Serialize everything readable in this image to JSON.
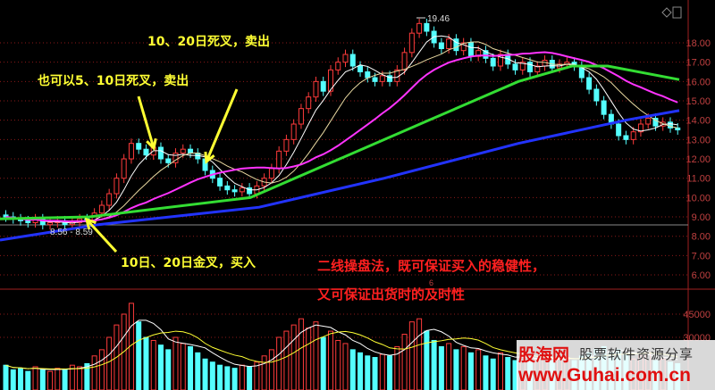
{
  "chart_data": {
    "type": "candlestick",
    "ylim": [
      5.5,
      19.5
    ],
    "yticks": [
      "18.00",
      "17.00",
      "16.00",
      "15.00",
      "14.00",
      "13.00",
      "12.00",
      "11.00",
      "10.00",
      "9.00",
      "8.00",
      "7.00",
      "6.00"
    ],
    "volume_ticks": [
      "45000",
      "30000"
    ],
    "high_label": "19.46",
    "range_label": "8.56 - 8.59",
    "small_label": "6",
    "closes": [
      9.0,
      8.9,
      8.8,
      8.7,
      8.9,
      8.6,
      8.7,
      8.8,
      8.6,
      8.7,
      8.9,
      8.8,
      9.2,
      9.6,
      10.2,
      11.0,
      12.0,
      12.8,
      12.5,
      12.2,
      12.6,
      12.0,
      11.8,
      12.3,
      12.5,
      12.3,
      12.0,
      11.4,
      11.0,
      10.6,
      10.4,
      10.3,
      10.5,
      10.2,
      10.6,
      11.0,
      11.5,
      12.4,
      13.0,
      13.8,
      14.6,
      15.2,
      16.0,
      15.5,
      16.6,
      17.0,
      17.4,
      16.8,
      16.5,
      16.2,
      16.0,
      16.3,
      16.0,
      16.6,
      17.5,
      18.5,
      19.0,
      18.6,
      18.0,
      17.7,
      18.2,
      17.6,
      18.0,
      17.3,
      17.6,
      17.2,
      16.8,
      17.4,
      16.9,
      16.6,
      17.0,
      16.5,
      16.8,
      17.1,
      16.7,
      16.9,
      17.0,
      16.8,
      16.2,
      15.6,
      15.0,
      14.3,
      13.8,
      13.2,
      13.0,
      13.4,
      13.8,
      14.1,
      13.7,
      13.9,
      13.6,
      13.5
    ],
    "volumes": [
      12000,
      9000,
      10000,
      8000,
      11000,
      9000,
      8000,
      10000,
      9000,
      12000,
      11000,
      13000,
      18000,
      22000,
      30000,
      38000,
      45000,
      52000,
      40000,
      30000,
      28000,
      25000,
      22000,
      30000,
      26000,
      24000,
      20000,
      16000,
      14000,
      12000,
      11000,
      10000,
      12000,
      11000,
      14000,
      18000,
      22000,
      30000,
      34000,
      38000,
      42000,
      36000,
      40000,
      30000,
      34000,
      28000,
      26000,
      22000,
      20000,
      18000,
      17000,
      19000,
      18000,
      24000,
      32000,
      40000,
      42000,
      34000,
      28000,
      24000,
      26000,
      22000,
      24000,
      20000,
      22000,
      18000,
      16000,
      20000,
      17000,
      15000,
      18000,
      15000,
      16000,
      18000,
      15000,
      16000,
      17000,
      15000,
      18000,
      20000,
      22000,
      24000,
      20000,
      22000,
      19000,
      16000,
      18000,
      20000,
      15000,
      16000,
      14000,
      13000
    ],
    "ma_green": [
      [
        0,
        8.9
      ],
      [
        100,
        9.0
      ],
      [
        280,
        10.0
      ],
      [
        380,
        12.0
      ],
      [
        480,
        14.0
      ],
      [
        580,
        16.0
      ],
      [
        640,
        16.8
      ],
      [
        680,
        16.8
      ],
      [
        760,
        16.1
      ]
    ],
    "ma_blue": [
      [
        0,
        7.8
      ],
      [
        110,
        8.6
      ],
      [
        290,
        9.5
      ],
      [
        430,
        11.0
      ],
      [
        580,
        12.8
      ],
      [
        700,
        14.0
      ],
      [
        760,
        14.5
      ]
    ],
    "colors": {
      "up": "#ff3b3b",
      "down": "#54ffff",
      "ma5": "#ffffff",
      "ma10": "#e8d8a0",
      "ma20": "#ff33ff",
      "ma60": "#33dd33",
      "ma120": "#2233ff",
      "grid": "#8b1a1a"
    }
  },
  "annotations": {
    "death_cross_10_20": "10、20日死叉，卖出",
    "death_cross_5_10": "也可以5、10日死叉，卖出",
    "golden_cross": "10日、20日金叉，买入",
    "method_line1": "二线操盘法，既可保证买入的稳健性，",
    "method_line2": "又可保证出货时的及时性"
  },
  "watermark": {
    "brand": "股海网",
    "slogan": "股票软件资源分享",
    "url": "www.Guhai.com.cn"
  }
}
